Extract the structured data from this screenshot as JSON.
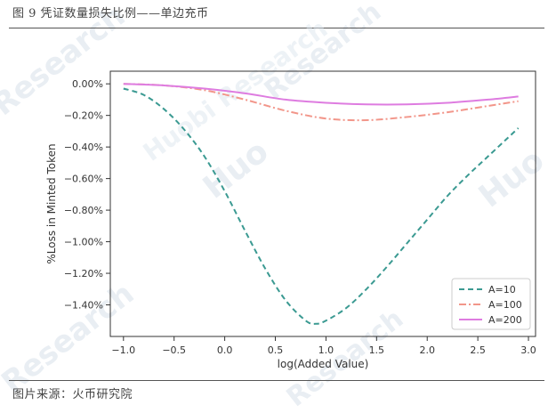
{
  "figure": {
    "title": "图 9 凭证数量损失比例——单边充币",
    "source": "图片来源：火币研究院"
  },
  "watermarks": {
    "logo_text": "Huobi Research",
    "fragments": [
      "Research",
      "Huo",
      "Huo",
      "Research",
      "Research",
      "Research",
      "Research"
    ]
  },
  "chart_data": {
    "type": "line",
    "xlabel": "log(Added Value)",
    "ylabel": "%Loss in Minted Token",
    "xlim": [
      -1.13,
      3.07
    ],
    "ylim": [
      -1.6,
      0.08
    ],
    "xticks": [
      -1.0,
      -0.5,
      0.0,
      0.5,
      1.0,
      1.5,
      2.0,
      2.5,
      3.0
    ],
    "xtick_labels": [
      "−1.0",
      "−0.5",
      "0.0",
      "0.5",
      "1.0",
      "1.5",
      "2.0",
      "2.5",
      "3.0"
    ],
    "yticks": [
      0.0,
      -0.2,
      -0.4,
      -0.6,
      -0.8,
      -1.0,
      -1.2,
      -1.4
    ],
    "ytick_labels": [
      "0.00%",
      "−0.20%",
      "−0.40%",
      "−0.60%",
      "−0.80%",
      "−1.00%",
      "−1.20%",
      "−1.40%"
    ],
    "grid": false,
    "legend_position": "bottom-right",
    "series": [
      {
        "name": "A=10",
        "color": "#3b9a92",
        "dash": "dashed",
        "x": [
          -1.0,
          -0.8,
          -0.6,
          -0.4,
          -0.2,
          0.0,
          0.2,
          0.4,
          0.6,
          0.8,
          0.9,
          1.0,
          1.2,
          1.4,
          1.6,
          1.8,
          2.0,
          2.2,
          2.4,
          2.6,
          2.8,
          2.9
        ],
        "y": [
          -0.03,
          -0.07,
          -0.16,
          -0.29,
          -0.46,
          -0.68,
          -0.93,
          -1.17,
          -1.37,
          -1.5,
          -1.52,
          -1.5,
          -1.42,
          -1.3,
          -1.16,
          -1.01,
          -0.86,
          -0.71,
          -0.58,
          -0.46,
          -0.34,
          -0.28
        ]
      },
      {
        "name": "A=100",
        "color": "#f2968a",
        "dash": "dashdot",
        "x": [
          -1.0,
          -0.6,
          -0.2,
          0.2,
          0.6,
          1.0,
          1.4,
          1.8,
          2.2,
          2.6,
          2.9
        ],
        "y": [
          0.0,
          -0.01,
          -0.04,
          -0.1,
          -0.17,
          -0.22,
          -0.23,
          -0.21,
          -0.18,
          -0.14,
          -0.11
        ]
      },
      {
        "name": "A=200",
        "color": "#de7ce0",
        "dash": "solid",
        "x": [
          -1.0,
          -0.6,
          -0.2,
          0.2,
          0.6,
          1.0,
          1.4,
          1.8,
          2.2,
          2.6,
          2.9
        ],
        "y": [
          0.0,
          -0.01,
          -0.03,
          -0.06,
          -0.1,
          -0.12,
          -0.13,
          -0.13,
          -0.12,
          -0.1,
          -0.08
        ]
      }
    ]
  }
}
